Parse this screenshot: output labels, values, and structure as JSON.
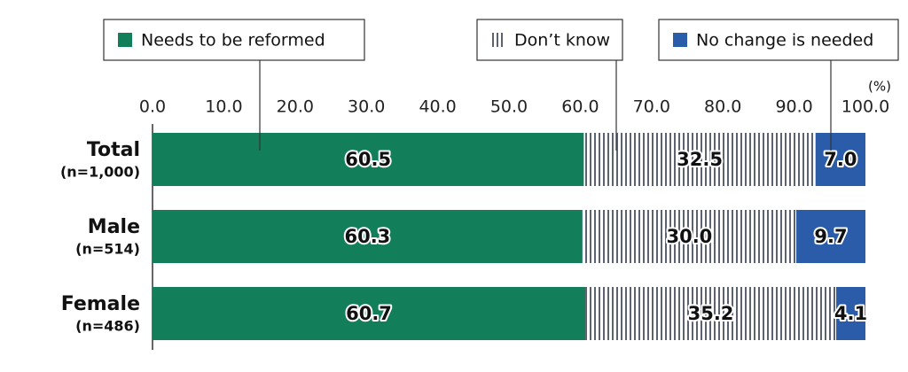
{
  "chart_data": {
    "type": "stacked-bar",
    "orientation": "horizontal",
    "unit_label": "(%)",
    "categories": [
      "Total",
      "Male",
      "Female"
    ],
    "category_notes": [
      "(n=1,000)",
      "(n=514)",
      "(n=486)"
    ],
    "series": [
      {
        "name": "Needs to be reformed",
        "color": "#127f5a",
        "values": [
          60.5,
          60.3,
          60.7
        ],
        "value_labels": [
          "60.5",
          "60.3",
          "60.7"
        ]
      },
      {
        "name": "Don’t know",
        "color": "#5d6270",
        "pattern": "vertical-lines",
        "values": [
          32.5,
          30.0,
          35.2
        ],
        "value_labels": [
          "32.5",
          "30.0",
          "35.2"
        ]
      },
      {
        "name": "No change is needed",
        "color": "#2a5caa",
        "values": [
          7.0,
          9.7,
          4.1
        ],
        "value_labels": [
          "7.0",
          "9.7",
          "4.1"
        ]
      }
    ],
    "xlim": [
      0,
      100
    ],
    "xticks": [
      {
        "value": 0,
        "label": "0.0"
      },
      {
        "value": 10,
        "label": "10.0"
      },
      {
        "value": 20,
        "label": "20.0"
      },
      {
        "value": 30,
        "label": "30.0"
      },
      {
        "value": 40,
        "label": "40.0"
      },
      {
        "value": 50,
        "label": "50.0"
      },
      {
        "value": 60,
        "label": "60.0"
      },
      {
        "value": 70,
        "label": "70.0"
      },
      {
        "value": 80,
        "label": "80.0"
      },
      {
        "value": 90,
        "label": "90.0"
      },
      {
        "value": 100,
        "label": "100.0"
      }
    ],
    "grid": false
  }
}
